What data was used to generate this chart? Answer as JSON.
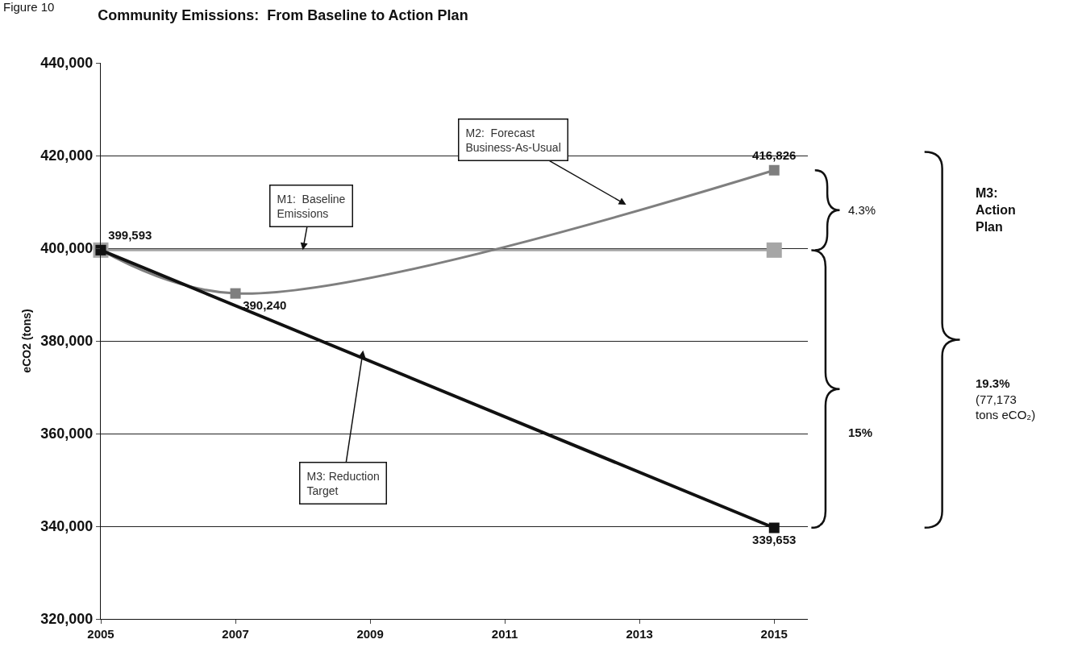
{
  "chart_data": {
    "type": "line",
    "title": "Community Emissions:  From Baseline to Action Plan",
    "ylabel": "eCO2 (tons)",
    "xlim": [
      2005,
      2015.5
    ],
    "xticks": [
      2005,
      2007,
      2009,
      2011,
      2013,
      2015
    ],
    "ylim": [
      320000,
      440000
    ],
    "yticks": [
      {
        "value": 320000,
        "label": "320,000"
      },
      {
        "value": 340000,
        "label": "340,000"
      },
      {
        "value": 360000,
        "label": "360,000"
      },
      {
        "value": 380000,
        "label": "380,000"
      },
      {
        "value": 400000,
        "label": "400,000"
      },
      {
        "value": 420000,
        "label": "420,000"
      },
      {
        "value": 440000,
        "label": "440,000"
      }
    ],
    "grid": "y",
    "marker": "square",
    "line_style": "solid",
    "series": [
      {
        "color": "#a6a6a6",
        "x": [
          2005,
          2015
        ],
        "values": [
          399593,
          399593
        ]
      },
      {
        "color": "#7f7f7f",
        "x": [
          2005,
          2007,
          2015
        ],
        "values": [
          399593,
          390240,
          416826
        ],
        "value_labels": [
          "399,593",
          "390,240",
          "416,826"
        ]
      },
      {
        "color": "#111111",
        "x": [
          2005,
          2015
        ],
        "values": [
          399593,
          339653
        ],
        "value_labels": [
          null,
          "339,653"
        ]
      }
    ],
    "annotations": [
      "Figure 10",
      {
        "text": "M1:  Baseline Emissions",
        "x": 2008,
        "y": 399593
      },
      "M2:  Forecast Business-As-Usual",
      "M3: Reduction Target",
      "4.3%",
      "15%",
      "M3: Action Plan",
      "19.3% (77,173 tons eCO₂)"
    ]
  }
}
